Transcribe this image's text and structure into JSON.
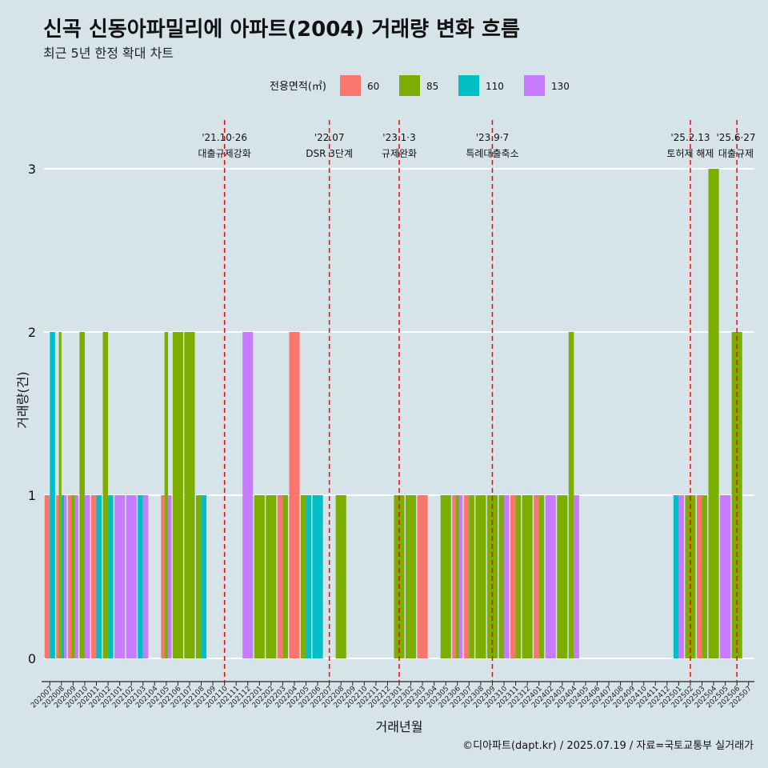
{
  "title": "신곡 신동아파밀리에 아파트(2004) 거래량 변화 흐름",
  "subtitle": "최근 5년 한정 확대 차트",
  "caption": "©디아파트(dapt.kr) / 2025.07.19 / 자료=국토교통부 실거래가",
  "chart_data": {
    "type": "bar",
    "xlabel": "거래년월",
    "ylabel": "거래량(건)",
    "ylim": [
      0,
      3
    ],
    "yticks": [
      0,
      1,
      2,
      3
    ],
    "grid": true,
    "legend": {
      "title": "전용면적(㎡)",
      "position": "top"
    },
    "categories": [
      "202007",
      "202008",
      "202009",
      "202010",
      "202011",
      "202012",
      "202101",
      "202102",
      "202103",
      "202104",
      "202105",
      "202106",
      "202107",
      "202108",
      "202109",
      "202110",
      "202111",
      "202112",
      "202201",
      "202202",
      "202203",
      "202204",
      "202205",
      "202206",
      "202207",
      "202208",
      "202209",
      "202210",
      "202211",
      "202212",
      "202301",
      "202302",
      "202303",
      "202304",
      "202305",
      "202306",
      "202307",
      "202308",
      "202309",
      "202310",
      "202311",
      "202312",
      "202401",
      "202402",
      "202403",
      "202404",
      "202405",
      "202406",
      "202407",
      "202408",
      "202409",
      "202410",
      "202411",
      "202412",
      "202501",
      "202502",
      "202503",
      "202504",
      "202505",
      "202506",
      "202507"
    ],
    "series": [
      {
        "name": "60",
        "color": "#F8766D",
        "values": [
          1,
          1,
          1,
          0,
          1,
          0,
          0,
          0,
          0,
          0,
          1,
          0,
          0,
          0,
          0,
          0,
          0,
          0,
          0,
          0,
          1,
          2,
          0,
          0,
          0,
          0,
          0,
          0,
          0,
          0,
          0,
          0,
          1,
          0,
          0,
          1,
          1,
          0,
          0,
          0,
          1,
          0,
          1,
          0,
          0,
          0,
          0,
          0,
          0,
          0,
          0,
          0,
          0,
          0,
          0,
          0,
          1,
          0,
          0,
          0,
          0
        ]
      },
      {
        "name": "85",
        "color": "#7CAE00",
        "values": [
          0,
          2,
          1,
          2,
          0,
          2,
          0,
          0,
          0,
          0,
          2,
          2,
          2,
          1,
          0,
          0,
          0,
          0,
          1,
          1,
          1,
          0,
          1,
          0,
          0,
          1,
          0,
          0,
          0,
          0,
          1,
          1,
          0,
          0,
          1,
          1,
          1,
          1,
          1,
          1,
          1,
          1,
          1,
          0,
          1,
          2,
          0,
          0,
          0,
          0,
          0,
          0,
          0,
          0,
          0,
          1,
          1,
          3,
          0,
          2,
          0
        ]
      },
      {
        "name": "110",
        "color": "#00BFC4",
        "values": [
          2,
          1,
          0,
          0,
          1,
          1,
          0,
          0,
          1,
          0,
          0,
          0,
          0,
          1,
          0,
          0,
          0,
          0,
          0,
          0,
          0,
          0,
          1,
          1,
          0,
          0,
          0,
          0,
          0,
          0,
          0,
          0,
          0,
          0,
          0,
          0,
          0,
          0,
          0,
          0,
          0,
          0,
          0,
          0,
          0,
          0,
          0,
          0,
          0,
          0,
          0,
          0,
          0,
          0,
          1,
          0,
          0,
          0,
          0,
          0,
          0
        ]
      },
      {
        "name": "130",
        "color": "#C77CFF",
        "values": [
          0,
          1,
          1,
          1,
          0,
          0,
          1,
          1,
          1,
          0,
          1,
          0,
          0,
          0,
          0,
          0,
          0,
          2,
          0,
          0,
          0,
          0,
          0,
          0,
          0,
          0,
          0,
          0,
          0,
          0,
          0,
          0,
          0,
          0,
          0,
          1,
          0,
          0,
          0,
          1,
          0,
          0,
          0,
          1,
          0,
          1,
          0,
          0,
          0,
          0,
          0,
          0,
          0,
          0,
          1,
          0,
          0,
          0,
          1,
          0,
          0
        ]
      }
    ],
    "annotations": [
      {
        "date": "'21.10·26",
        "label": "대출규제강화",
        "month": "202110"
      },
      {
        "date": "'22.07",
        "label": "DSR 3단계",
        "month": "202207"
      },
      {
        "date": "'23.1·3",
        "label": "규제완화",
        "month": "202301"
      },
      {
        "date": "'23.9·7",
        "label": "특례대출축소",
        "month": "202309"
      },
      {
        "date": "'25.2.13",
        "label": "토허제 해제",
        "month": "202502"
      },
      {
        "date": "'25.6·27",
        "label": "대출규제",
        "month": "202506"
      }
    ]
  }
}
